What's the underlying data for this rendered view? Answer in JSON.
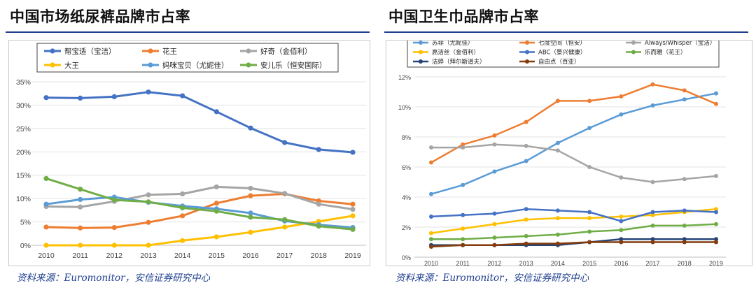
{
  "left": {
    "title": "中国市场纸尿裤品牌市占率",
    "source": "资料来源：Euromonitor，安信证券研究中心",
    "chart_data": {
      "type": "line",
      "title": "中国市场纸尿裤品牌市占率",
      "x": [
        "2010",
        "2011",
        "2012",
        "2013",
        "2014",
        "2015",
        "2016",
        "2017",
        "2018",
        "2019"
      ],
      "ylim": [
        0,
        35
      ],
      "yticks": [
        "0%",
        "5%",
        "10%",
        "15%",
        "20%",
        "25%",
        "30%",
        "35%"
      ],
      "series": [
        {
          "name": "帮宝适（宝洁）",
          "color": "#4472c4",
          "values": [
            31.6,
            31.5,
            31.8,
            32.8,
            32.0,
            28.6,
            25.1,
            22.0,
            20.5,
            19.9
          ]
        },
        {
          "name": "花王",
          "color": "#ed7d31",
          "values": [
            3.9,
            3.7,
            3.8,
            4.9,
            6.3,
            9.0,
            10.6,
            11.0,
            9.5,
            8.8
          ]
        },
        {
          "name": "好奇（金佰利）",
          "color": "#a5a5a5",
          "values": [
            8.3,
            8.2,
            9.4,
            10.8,
            11.0,
            12.5,
            12.2,
            11.1,
            8.8,
            7.7
          ]
        },
        {
          "name": "大王",
          "color": "#ffc000",
          "values": [
            0,
            0,
            0,
            0,
            1.0,
            1.8,
            2.8,
            3.9,
            5.1,
            6.3
          ]
        },
        {
          "name": "妈咪宝贝（尤妮佳）",
          "color": "#5b9bd5",
          "values": [
            8.8,
            9.8,
            10.3,
            9.2,
            8.4,
            7.8,
            6.9,
            5.2,
            4.4,
            3.8
          ]
        },
        {
          "name": "安儿乐（恒安国际）",
          "color": "#70ad47",
          "values": [
            14.3,
            12.0,
            9.7,
            9.3,
            8.0,
            7.3,
            6.0,
            5.5,
            4.1,
            3.4
          ]
        }
      ]
    }
  },
  "right": {
    "title": "中国卫生巾品牌市占率",
    "source": "资料来源：Euromonitor，安信证券研究中心",
    "chart_data": {
      "type": "line",
      "title": "中国卫生巾品牌市占率",
      "x": [
        "2010",
        "2011",
        "2012",
        "2013",
        "2014",
        "2015",
        "2016",
        "2017",
        "2018",
        "2019"
      ],
      "ylim": [
        0,
        12
      ],
      "yticks": [
        "0%",
        "2%",
        "4%",
        "6%",
        "8%",
        "10%",
        "12%"
      ],
      "series": [
        {
          "name": "苏菲（尤妮佳）",
          "color": "#5b9bd5",
          "values": [
            4.2,
            4.8,
            5.7,
            6.4,
            7.6,
            8.6,
            9.5,
            10.1,
            10.5,
            10.9
          ]
        },
        {
          "name": "七度空间（恒安）",
          "color": "#ed7d31",
          "values": [
            6.3,
            7.5,
            8.1,
            9.0,
            10.4,
            10.4,
            10.7,
            11.5,
            11.1,
            10.2
          ]
        },
        {
          "name": "Always/Whisper（宝洁）",
          "color": "#a5a5a5",
          "values": [
            7.3,
            7.3,
            7.5,
            7.4,
            7.1,
            6.0,
            5.3,
            5.0,
            5.2,
            5.4
          ]
        },
        {
          "name": "高洁丝（金佰利）",
          "color": "#ffc000",
          "values": [
            1.6,
            1.9,
            2.2,
            2.5,
            2.6,
            2.6,
            2.7,
            2.8,
            3.0,
            3.2
          ]
        },
        {
          "name": "ABC（景兴健康）",
          "color": "#4472c4",
          "values": [
            2.7,
            2.8,
            2.9,
            3.2,
            3.1,
            3.0,
            2.4,
            3.0,
            3.1,
            3.0
          ]
        },
        {
          "name": "乐而雅（花王）",
          "color": "#70ad47",
          "values": [
            1.2,
            1.2,
            1.3,
            1.4,
            1.5,
            1.7,
            1.8,
            2.1,
            2.1,
            2.2
          ]
        },
        {
          "name": "洁婷（拜尔斯道夫）",
          "color": "#264478",
          "values": [
            0.8,
            0.8,
            0.8,
            0.8,
            0.8,
            1.0,
            1.2,
            1.2,
            1.2,
            1.2
          ]
        },
        {
          "name": "自由点（百亚）",
          "color": "#843c0c",
          "values": [
            0.7,
            0.8,
            0.8,
            0.9,
            0.9,
            1.0,
            1.0,
            1.0,
            1.0,
            1.0
          ]
        }
      ]
    }
  }
}
